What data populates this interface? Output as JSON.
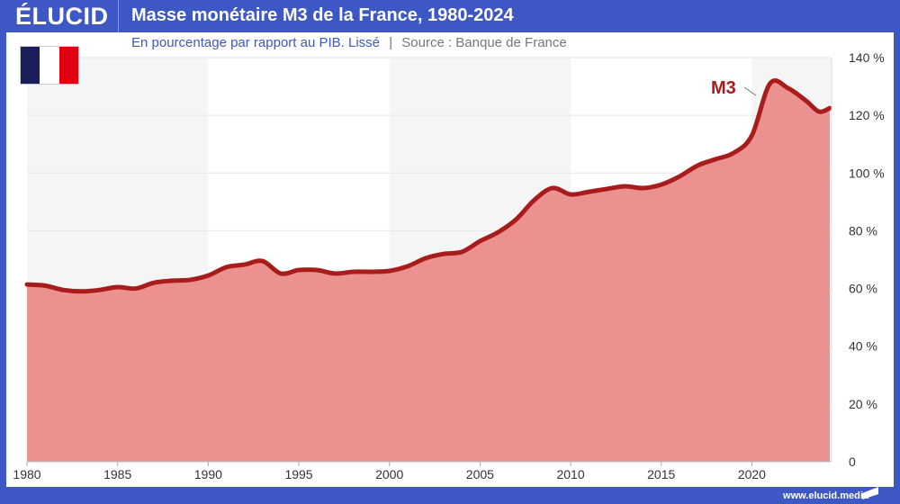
{
  "header": {
    "logo": "ÉLUCID",
    "title": "Masse monétaire M3 de la France, 1980-2024"
  },
  "subtitle": {
    "text": "En pourcentage par rapport au PIB. Lissé",
    "divider": "|",
    "source": "Source : Banque de France"
  },
  "flag": {
    "colors": [
      "#1a1f5c",
      "#ffffff",
      "#e1000f"
    ]
  },
  "footer": {
    "url": "www.elucid.media"
  },
  "colors": {
    "brand": "#3d58c4",
    "line": "#a81c1c",
    "fill": "#eb9290",
    "band": "#f5f5f5"
  },
  "chart_data": {
    "type": "area",
    "title": "Masse monétaire M3 de la France, 1980-2024",
    "xlabel": "",
    "ylabel": "",
    "xlim": [
      1980,
      2024.4
    ],
    "ylim": [
      0,
      140
    ],
    "x_ticks": [
      "1980",
      "1985",
      "1990",
      "1995",
      "2000",
      "2005",
      "2010",
      "2015",
      "2020"
    ],
    "y_ticks": [
      "0",
      "20 %",
      "40 %",
      "60 %",
      "80 %",
      "100 %",
      "120 %",
      "140 %"
    ],
    "grid": true,
    "series": [
      {
        "name": "M3",
        "x": [
          1980,
          1981,
          1982,
          1983,
          1984,
          1985,
          1986,
          1987,
          1988,
          1989,
          1990,
          1991,
          1992,
          1993,
          1994,
          1995,
          1996,
          1997,
          1998,
          1999,
          2000,
          2001,
          2002,
          2003,
          2004,
          2005,
          2006,
          2007,
          2008,
          2009,
          2010,
          2011,
          2012,
          2013,
          2014,
          2015,
          2016,
          2017,
          2018,
          2019,
          2020,
          2021,
          2022,
          2023,
          2023.7,
          2024.3
        ],
        "y": [
          61.4,
          61,
          59.5,
          59,
          59.5,
          60.5,
          60,
          62,
          62.7,
          63,
          64.5,
          67.4,
          68.3,
          69.5,
          65.2,
          66.4,
          66.4,
          65.2,
          65.8,
          65.8,
          66.1,
          67.7,
          70.5,
          72,
          72.7,
          76.4,
          79.5,
          84,
          90.7,
          94.8,
          92.6,
          93.5,
          94.5,
          95.4,
          94.8,
          96,
          98.8,
          102.6,
          104.8,
          107,
          113,
          131,
          129.4,
          125,
          121.3,
          122.5
        ]
      }
    ]
  }
}
